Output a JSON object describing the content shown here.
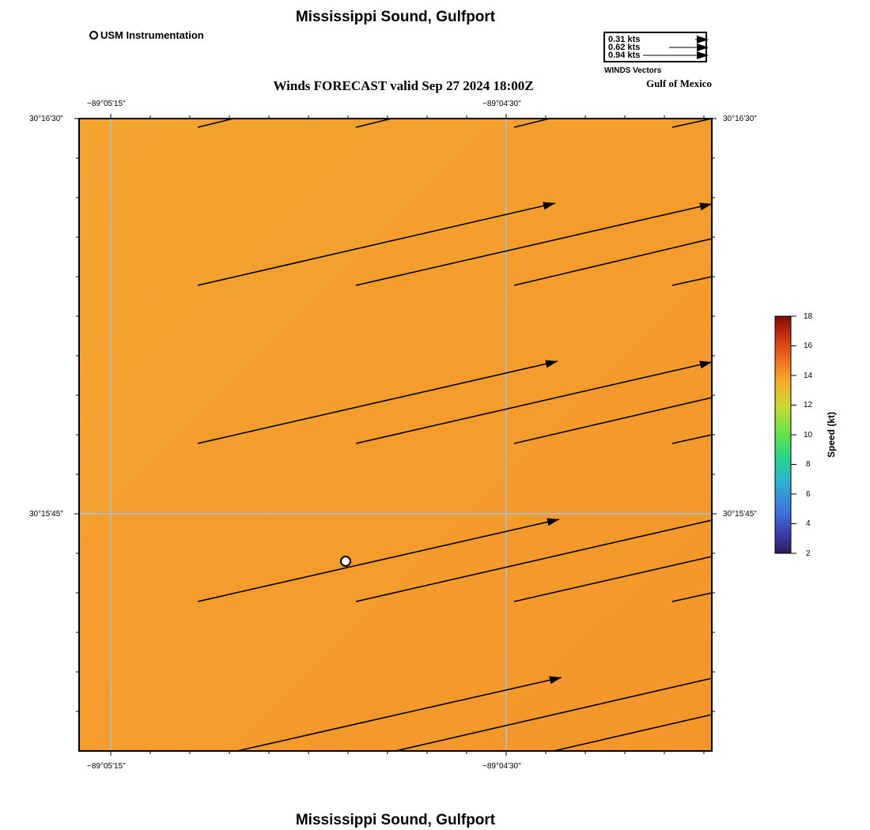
{
  "header": {
    "title": "Mississippi Sound, Gulfport",
    "subtitle": "Winds FORECAST valid Sep 27 2024 18:00Z",
    "region_label": "Gulf of Mexico"
  },
  "footer": {
    "title": "Mississippi Sound, Gulfport"
  },
  "legend": {
    "station_label": "USM Instrumentation"
  },
  "vector_legend": {
    "items": [
      "0.31 kts",
      "0.62 kts",
      "0.94 kts"
    ],
    "caption": "WINDS Vectors"
  },
  "axes": {
    "x_ticks": [
      "−89°05'15\"",
      "−89°04'30\""
    ],
    "y_ticks": [
      "30°16'30\"",
      "30°15'45\""
    ]
  },
  "colorbar": {
    "title": "Speed (kt)",
    "labels": [
      "18",
      "16",
      "14",
      "12",
      "10",
      "8",
      "6",
      "4",
      "2"
    ],
    "range": [
      2,
      18
    ],
    "field_color_start": "#f3a42f",
    "field_color_end": "#f5962a"
  },
  "map": {
    "station": {
      "name": "USM Instrumentation"
    },
    "vectors": [
      {
        "x0": 250,
        "y0": 161,
        "x1": 295,
        "y1": 150,
        "head": false
      },
      {
        "x0": 450,
        "y0": 161,
        "x1": 495,
        "y1": 150,
        "head": false
      },
      {
        "x0": 650,
        "y0": 161,
        "x1": 695,
        "y1": 150,
        "head": false
      },
      {
        "x0": 850,
        "y0": 161,
        "x1": 900,
        "y1": 150,
        "head": false
      },
      {
        "x0": 250,
        "y0": 361,
        "x1": 702,
        "y1": 257,
        "head": true
      },
      {
        "x0": 450,
        "y0": 361,
        "x1": 900,
        "y1": 258,
        "head": true
      },
      {
        "x0": 650,
        "y0": 361,
        "x1": 900,
        "y1": 302,
        "head": false
      },
      {
        "x0": 850,
        "y0": 361,
        "x1": 900,
        "y1": 350,
        "head": false
      },
      {
        "x0": 250,
        "y0": 561,
        "x1": 705,
        "y1": 457,
        "head": true
      },
      {
        "x0": 450,
        "y0": 561,
        "x1": 900,
        "y1": 458,
        "head": true
      },
      {
        "x0": 650,
        "y0": 561,
        "x1": 900,
        "y1": 503,
        "head": false
      },
      {
        "x0": 850,
        "y0": 561,
        "x1": 900,
        "y1": 550,
        "head": false
      },
      {
        "x0": 250,
        "y0": 761,
        "x1": 707,
        "y1": 657,
        "head": true
      },
      {
        "x0": 450,
        "y0": 761,
        "x1": 900,
        "y1": 658,
        "head": false
      },
      {
        "x0": 650,
        "y0": 761,
        "x1": 900,
        "y1": 704,
        "head": false
      },
      {
        "x0": 850,
        "y0": 761,
        "x1": 900,
        "y1": 750,
        "head": false
      },
      {
        "x0": 300,
        "y0": 950,
        "x1": 710,
        "y1": 857,
        "head": true
      },
      {
        "x0": 500,
        "y0": 950,
        "x1": 900,
        "y1": 858,
        "head": false
      },
      {
        "x0": 700,
        "y0": 950,
        "x1": 900,
        "y1": 904,
        "head": false
      }
    ]
  }
}
